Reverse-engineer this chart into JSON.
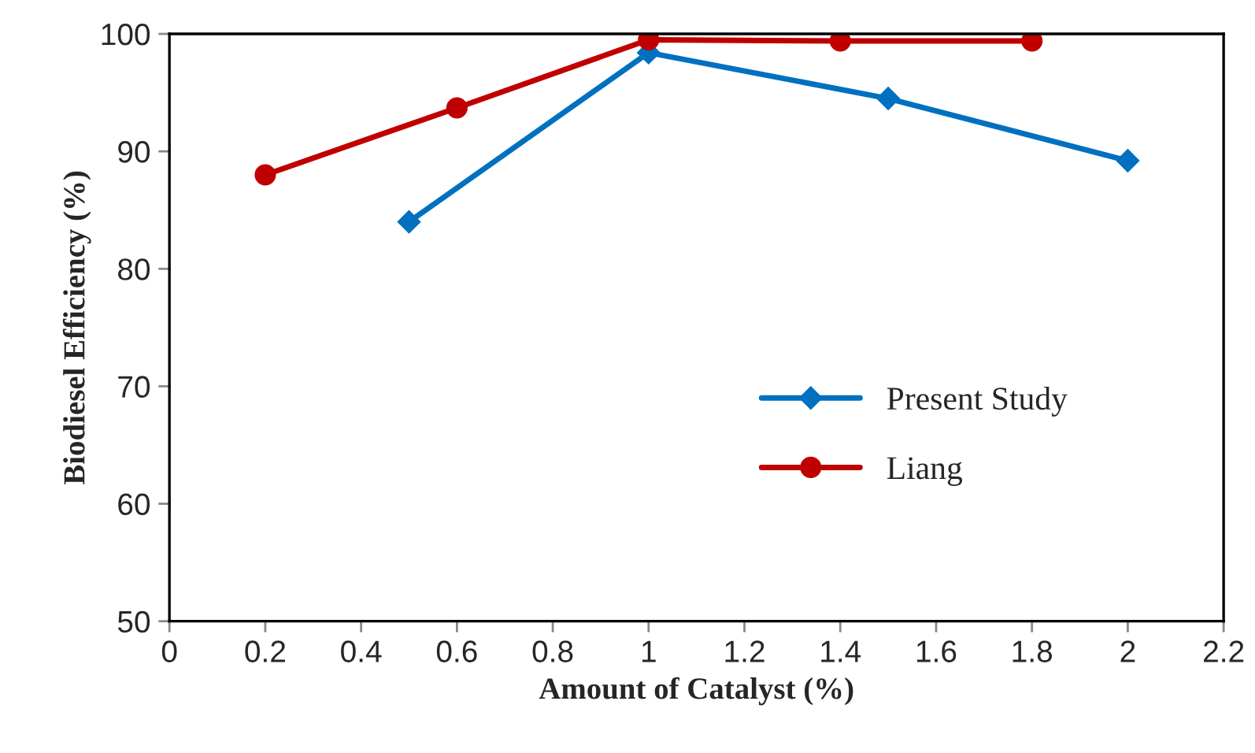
{
  "chart_data": {
    "type": "line",
    "xlabel": "Amount of Catalyst (%)",
    "ylabel": "Biodiesel Efficiency (%)",
    "xlim": [
      0,
      2.2
    ],
    "xticks": [
      0,
      0.2,
      0.4,
      0.6,
      0.8,
      1,
      1.2,
      1.4,
      1.6,
      1.8,
      2,
      2.2
    ],
    "ylim": [
      50,
      100
    ],
    "yticks": [
      50,
      60,
      70,
      80,
      90,
      100
    ],
    "series": [
      {
        "name": "Present Study",
        "color": "#0070c0",
        "marker": "diamond",
        "x": [
          0.5,
          1,
          1.5,
          2
        ],
        "values": [
          84,
          98.4,
          94.5,
          89.2
        ]
      },
      {
        "name": "Liang",
        "color": "#c00000",
        "marker": "circle",
        "x": [
          0.2,
          0.6,
          1,
          1.4,
          1.8
        ],
        "values": [
          88,
          93.7,
          99.5,
          99.4,
          99.4
        ]
      }
    ],
    "grid": false,
    "legend": "lower right",
    "line_style": "solid"
  }
}
